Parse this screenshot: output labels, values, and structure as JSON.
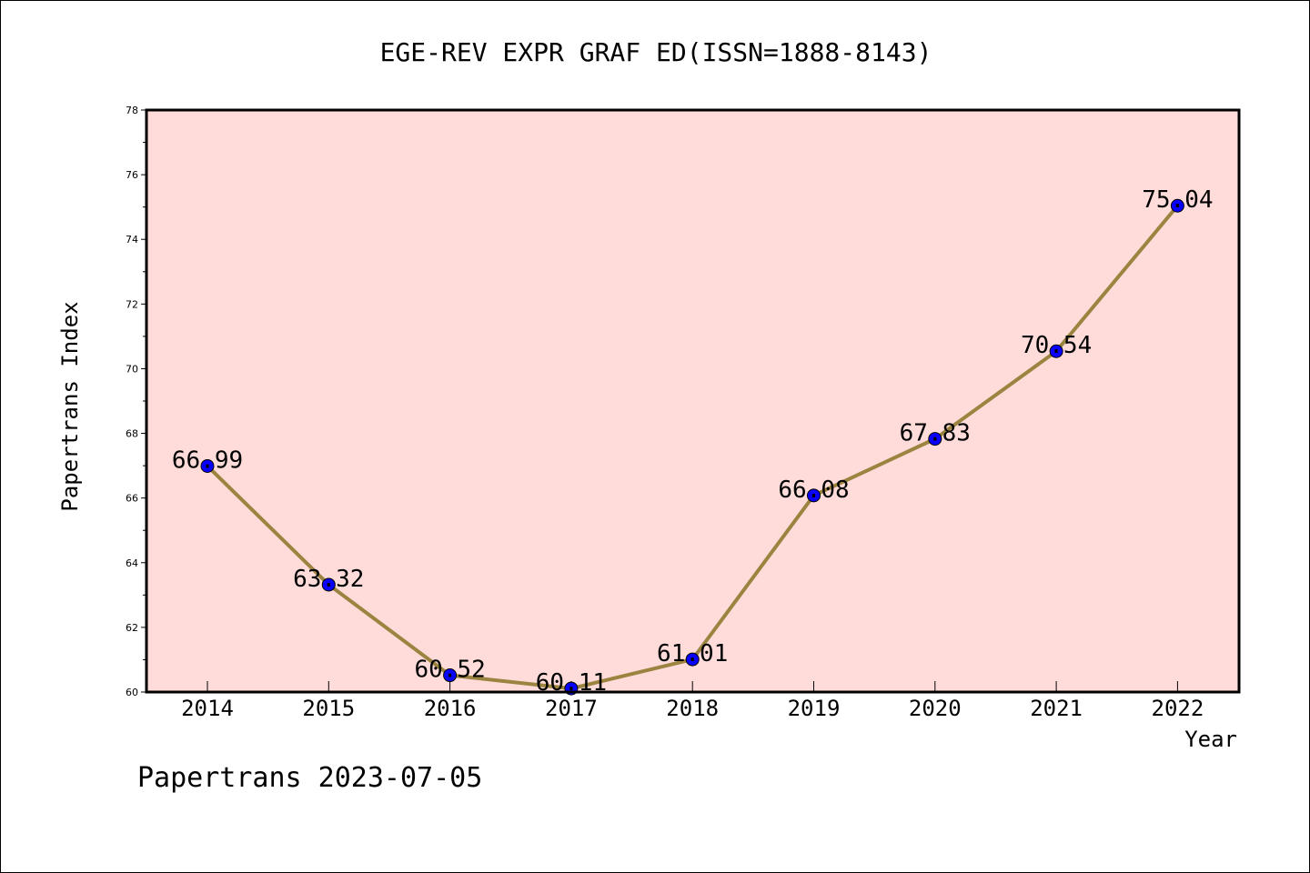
{
  "chart_data": {
    "type": "line",
    "title": "EGE-REV EXPR GRAF ED(ISSN=1888-8143)",
    "xlabel": "Year",
    "ylabel": "Papertrans Index",
    "categories": [
      "2014",
      "2015",
      "2016",
      "2017",
      "2018",
      "2019",
      "2020",
      "2021",
      "2022"
    ],
    "values": [
      66.99,
      63.32,
      60.52,
      60.11,
      61.01,
      66.08,
      67.83,
      70.54,
      75.04
    ],
    "data_labels": [
      "66.99",
      "63.32",
      "60.52",
      "60.11",
      "61.01",
      "66.08",
      "67.83",
      "70.54",
      "75.04"
    ],
    "ylim": [
      60,
      78
    ],
    "yticks": [
      60,
      62,
      64,
      66,
      68,
      70,
      72,
      74,
      76,
      78
    ],
    "ytick_labels": [
      "60",
      "62",
      "64",
      "66",
      "68",
      "70",
      "72",
      "74",
      "76",
      "78"
    ],
    "grid": false,
    "legend": "none",
    "footer": "Papertrans 2023-07-05",
    "colors": {
      "plot_background": "#ffdcda",
      "line": "#9b8440",
      "marker": "#0a00ff",
      "axes": "#000000"
    }
  }
}
